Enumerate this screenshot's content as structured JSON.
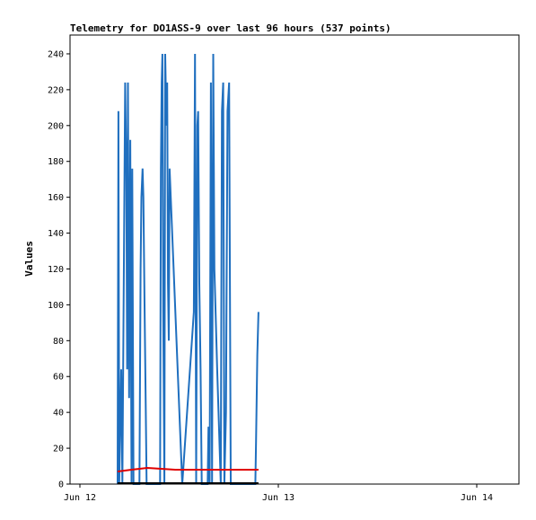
{
  "chart_data": {
    "type": "line",
    "title": "Telemetry for DO1ASS-9 over last 96 hours (537 points)",
    "xlabel": "",
    "ylabel": "Values",
    "xlim": [
      -0.1,
      1.13
    ],
    "ylim": [
      0,
      250
    ],
    "x_ticks": [
      {
        "value": 0,
        "label": "Jun 12"
      },
      {
        "value": 1,
        "label": "Jun 13"
      },
      {
        "value": 2,
        "label": "Jun 14"
      }
    ],
    "y_ticks": [
      0,
      20,
      40,
      60,
      80,
      100,
      120,
      140,
      160,
      180,
      200,
      220,
      240
    ],
    "series": [
      {
        "name": "",
        "color": "#1f6fbf",
        "points": [
          [
            0.095,
            0
          ],
          [
            0.097,
            208
          ],
          [
            0.099,
            0
          ],
          [
            0.104,
            64
          ],
          [
            0.107,
            0
          ],
          [
            0.114,
            224
          ],
          [
            0.117,
            176
          ],
          [
            0.119,
            64
          ],
          [
            0.121,
            224
          ],
          [
            0.124,
            48
          ],
          [
            0.127,
            192
          ],
          [
            0.13,
            0
          ],
          [
            0.132,
            176
          ],
          [
            0.135,
            0
          ],
          [
            0.15,
            0
          ],
          [
            0.153,
            120
          ],
          [
            0.155,
            160
          ],
          [
            0.158,
            176
          ],
          [
            0.16,
            160
          ],
          [
            0.163,
            100
          ],
          [
            0.166,
            40
          ],
          [
            0.168,
            0
          ],
          [
            0.202,
            0
          ],
          [
            0.204,
            176
          ],
          [
            0.206,
            224
          ],
          [
            0.208,
            240
          ],
          [
            0.21,
            96
          ],
          [
            0.213,
            0
          ],
          [
            0.215,
            240
          ],
          [
            0.218,
            200
          ],
          [
            0.22,
            224
          ],
          [
            0.222,
            112
          ],
          [
            0.224,
            80
          ],
          [
            0.226,
            176
          ],
          [
            0.258,
            0
          ],
          [
            0.287,
            96
          ],
          [
            0.29,
            240
          ],
          [
            0.293,
            0
          ],
          [
            0.296,
            200
          ],
          [
            0.298,
            208
          ],
          [
            0.301,
            112
          ],
          [
            0.304,
            64
          ],
          [
            0.307,
            0
          ],
          [
            0.322,
            0
          ],
          [
            0.324,
            32
          ],
          [
            0.327,
            0
          ],
          [
            0.33,
            224
          ],
          [
            0.333,
            0
          ],
          [
            0.336,
            240
          ],
          [
            0.339,
            120
          ],
          [
            0.346,
            64
          ],
          [
            0.355,
            0
          ],
          [
            0.358,
            208
          ],
          [
            0.361,
            224
          ],
          [
            0.364,
            0
          ],
          [
            0.368,
            40
          ],
          [
            0.372,
            208
          ],
          [
            0.376,
            224
          ],
          [
            0.38,
            0
          ],
          [
            0.442,
            0
          ],
          [
            0.444,
            24
          ],
          [
            0.447,
            72
          ],
          [
            0.45,
            96
          ]
        ]
      },
      {
        "name": "",
        "color": "#e00000",
        "points": [
          [
            0.095,
            7
          ],
          [
            0.13,
            8
          ],
          [
            0.17,
            9
          ],
          [
            0.24,
            8
          ],
          [
            0.29,
            8
          ],
          [
            0.33,
            8
          ],
          [
            0.38,
            8
          ],
          [
            0.45,
            8
          ]
        ]
      },
      {
        "name": "",
        "color": "#000000",
        "points": [
          [
            0.095,
            0.5
          ],
          [
            0.45,
            0.5
          ]
        ]
      }
    ],
    "grid": false,
    "legend": "none"
  }
}
